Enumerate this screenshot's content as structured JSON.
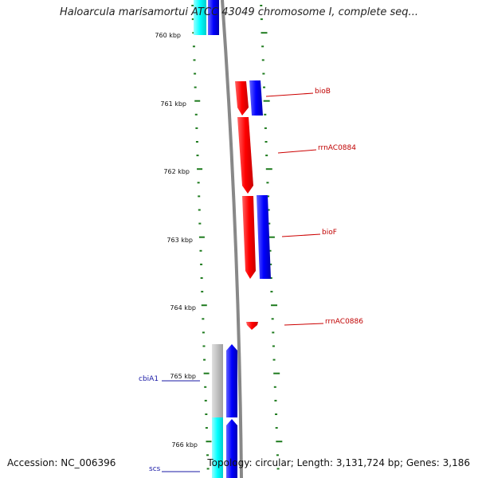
{
  "title": "Haloarcula marisamortui ATCC 43049 chromosome I, complete seq...",
  "footer": {
    "accession": "Accession: NC_006396",
    "topology": "Topology: circular; Length: 3,131,724 bp; Genes: 3,186"
  },
  "kbp_marks": [
    "760 kbp",
    "761 kbp",
    "762 kbp",
    "763 kbp",
    "764 kbp",
    "765 kbp",
    "766 kbp"
  ],
  "right_genes": [
    {
      "label": "bioB",
      "color": "#cc0000"
    },
    {
      "label": "rrnAC0884",
      "color": "#cc0000"
    },
    {
      "label": "bioF",
      "color": "#cc0000"
    },
    {
      "label": "rrnAC0886",
      "color": "#cc0000"
    }
  ],
  "left_genes": [
    {
      "label": "cbiA1",
      "color": "#1a1aa6"
    },
    {
      "label": "scs",
      "color": "#1a1aa6"
    }
  ],
  "colors": {
    "forward": "#ff0000",
    "reverse": "#0000ff",
    "cyan": "#00ffff",
    "grey": "#b4b4b4",
    "backbone": "#888888",
    "tick": "#1e7b1e"
  }
}
